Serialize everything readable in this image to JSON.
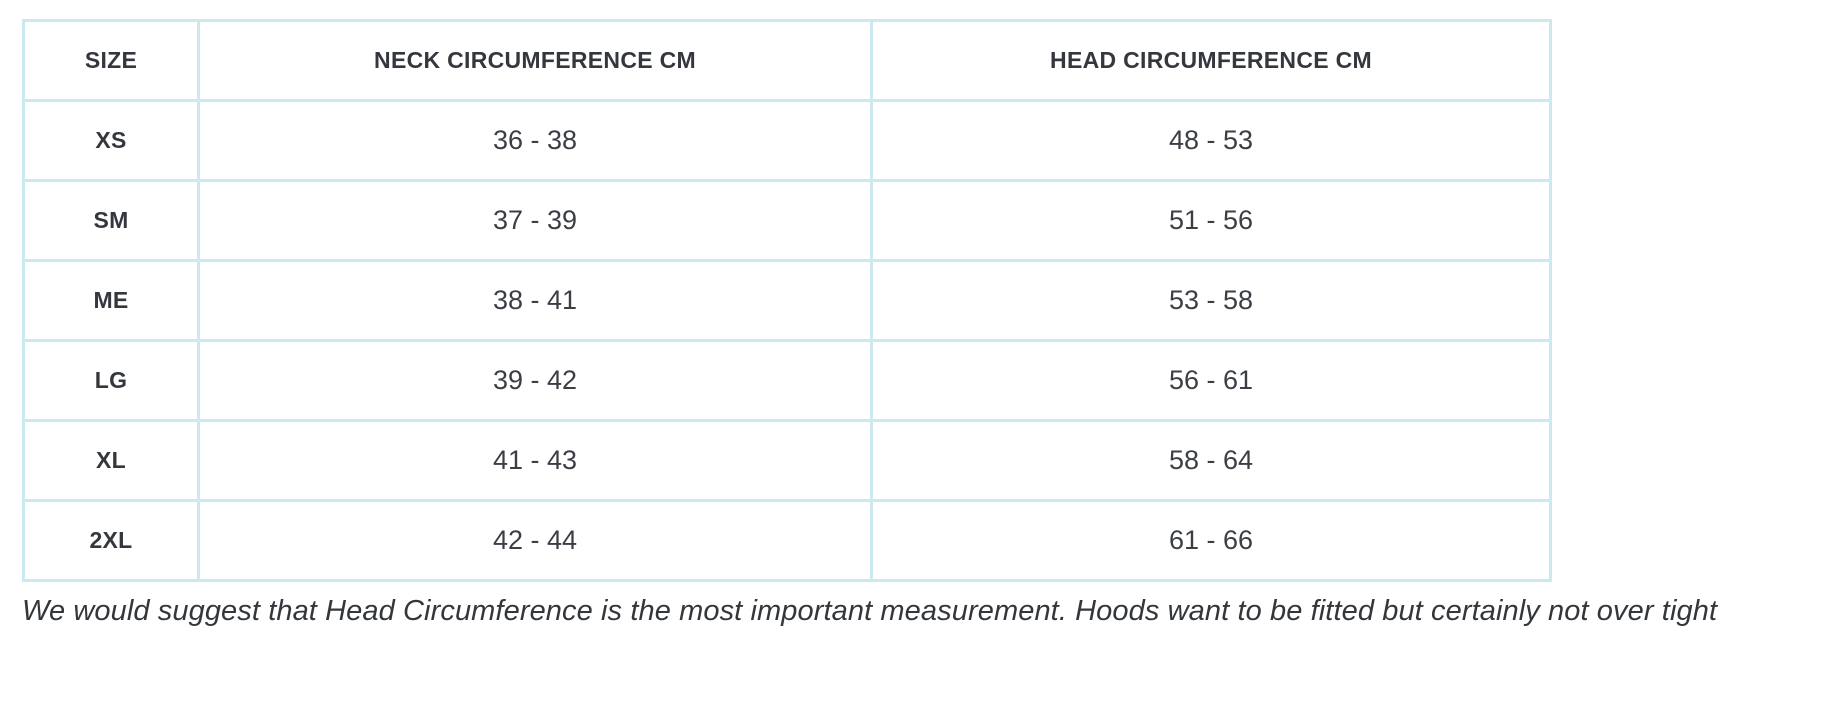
{
  "colors": {
    "border": "#cbe9ef",
    "heading_text": "#34383e",
    "value_text": "#3b3f45",
    "note_text": "#33373c",
    "background": "#ffffff"
  },
  "chart_data": {
    "type": "table",
    "columns": [
      "SIZE",
      "NECK CIRCUMFERENCE CM",
      "HEAD CIRCUMFERENCE CM"
    ],
    "rows": [
      {
        "size": "XS",
        "neck": "36 - 38",
        "head": "48 - 53"
      },
      {
        "size": "SM",
        "neck": "37 - 39",
        "head": "51 - 56"
      },
      {
        "size": "ME",
        "neck": "38 - 41",
        "head": "53 - 58"
      },
      {
        "size": "LG",
        "neck": "39 - 42",
        "head": "56 - 61"
      },
      {
        "size": "XL",
        "neck": "41 - 43",
        "head": "58 - 64"
      },
      {
        "size": "2XL",
        "neck": "42 - 44",
        "head": "61 - 66"
      }
    ]
  },
  "note": "We would suggest that Head Circumference is the most important measurement. Hoods want to be fitted but certainly not over tight"
}
